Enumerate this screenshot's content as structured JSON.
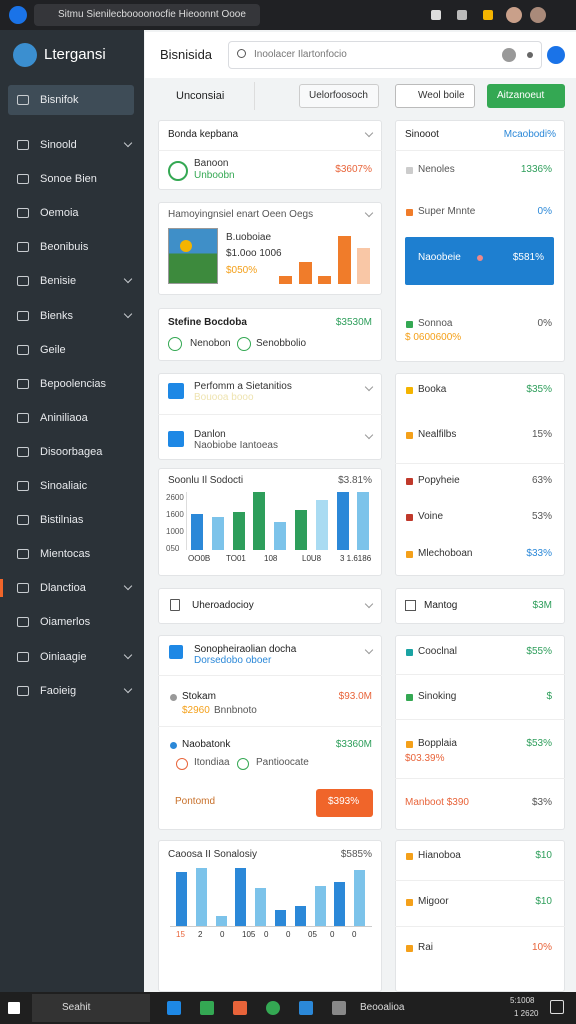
{
  "browser": {
    "address": "Sitmu Sienilecboooonocfie Hieoonnt Oooe"
  },
  "sidebar": {
    "brand": "Ltergansi",
    "items": [
      "Bisnifok",
      "Sinoold",
      "Sonoe Bien",
      "Oemoia",
      "Beonibuis",
      "Benisie",
      "Bienks",
      "Geile",
      "Bepoolencias",
      "Aniniliaoa",
      "Disoorbagea",
      "Sinoaliaic",
      "Bistilnias",
      "Mientocas",
      "Dlanctioa",
      "Oiamerlos",
      "Oiniaagie",
      "Faoieig"
    ]
  },
  "header": {
    "title": "Bisnisida",
    "search": "Inoolacer Ilartonfocio"
  },
  "toolbar": {
    "label": "Unconsiai",
    "dropdown": "Uelorfoosoch",
    "button": "Weol boile",
    "primary": "Aitzanoeut"
  },
  "left": {
    "card1": {
      "title": "Bonda kepbana",
      "name": "Banoon",
      "sub": "Unboobn",
      "value": "$3607%"
    },
    "card2": {
      "title": "Hamoyingnsiel enart Oeen Oegs",
      "line1": "B.uoboiae",
      "line2": "$1.0oo 1006",
      "line3": "$050%",
      "bars": [
        8,
        22,
        8,
        48,
        36
      ]
    },
    "card3": {
      "title": "Stefine Bocdoba",
      "value": "$3530M",
      "tag1": "Nenobon",
      "tag2": "Senobbolio"
    },
    "card4": {
      "rows": [
        {
          "title": "Perfomm a Sietanitios",
          "sub": "Bouooa booo"
        },
        {
          "title": "Danlon",
          "sub": "Naobiobe Iantoeas"
        }
      ]
    },
    "card5": {
      "title": "Soonlu Il Sodocti",
      "value": "$3.81%",
      "y_labels": [
        "2600",
        "1600",
        "1000",
        "050"
      ],
      "x_labels": [
        "OO0B",
        "TO01",
        "108",
        "L0U8",
        "3 1.6186"
      ],
      "bars": [
        36,
        33,
        38,
        58,
        28,
        40,
        50,
        58,
        58
      ],
      "colors": [
        "#2b88d8",
        "#7cc3ea",
        "#2e9e5b",
        "#2e9e5b",
        "#7cc3ea",
        "#2e9e5b",
        "#a9dbf2",
        "#2b88d8",
        "#7cc3ea"
      ]
    },
    "card6": {
      "title": "Uheroadocioy"
    },
    "card7": {
      "header": "Sonopheiraolian docha",
      "sub": "Dorsedobo oboer",
      "items": [
        {
          "name": "Stokam",
          "value": "$93.0M",
          "sub1": "$2960",
          "sub2": "Bnnbnoto"
        },
        {
          "name": "Naobatonk",
          "value": "$3360M",
          "sub1": "Itondiaa",
          "sub2": "Pantioocate"
        }
      ],
      "footer": "Pontomd",
      "button": "$393%"
    },
    "card8": {
      "title": "Caoosa II Sonalosiy",
      "value": "$585%",
      "x_labels": [
        "15",
        "2",
        "0",
        "105",
        "0",
        "0",
        "05",
        "0",
        "0"
      ],
      "bars": [
        54,
        58,
        10,
        58,
        38,
        16,
        20,
        40,
        44,
        56
      ],
      "colors": [
        "#2b88d8",
        "#7cc3ea",
        "#7cc3ea",
        "#2b88d8",
        "#7cc3ea",
        "#2b88d8",
        "#2b88d8",
        "#7cc3ea",
        "#2b88d8",
        "#7cc3ea"
      ]
    }
  },
  "right": {
    "panel1": {
      "title": "Sinooot",
      "link": "Mcaobodi%",
      "rows": [
        {
          "label": "Nenoles",
          "value": "1336%"
        },
        {
          "label": "Super Mnnte",
          "value": "0%"
        }
      ],
      "banner": {
        "label": "Naoobeie",
        "value": "$581%"
      },
      "last": {
        "label": "Sonnoa",
        "sub": "$ 0600600%",
        "value": "0%"
      }
    },
    "panel2": {
      "rows": [
        {
          "label": "Booka",
          "value": "$35%"
        },
        {
          "label": "Nealfilbs",
          "value": "15%"
        },
        {
          "label": "Popyheie",
          "value": "63%"
        },
        {
          "label": "Voine",
          "value": "53%"
        },
        {
          "label": "Mlechoboan",
          "value": "$33%"
        }
      ]
    },
    "panel3": {
      "label": "Mantog",
      "value": "$3M"
    },
    "panel4": {
      "rows": [
        {
          "label": "Cooclnal",
          "value": "$55%"
        },
        {
          "label": "Sinoking",
          "value": "$"
        },
        {
          "label": "Bopplaia",
          "sub": "$03.39%",
          "value": "$53%"
        },
        {
          "label": "Manboot $390",
          "value": "$3%"
        }
      ]
    },
    "panel5": {
      "rows": [
        {
          "label": "Hianoboa",
          "value": "$10"
        },
        {
          "label": "Migoor",
          "value": "$10"
        },
        {
          "label": "Rai",
          "value": "10%"
        }
      ]
    }
  },
  "taskbar": {
    "search": "Seahit",
    "app": "Beooalioa",
    "time": "5:1008",
    "date": "1 2620"
  }
}
